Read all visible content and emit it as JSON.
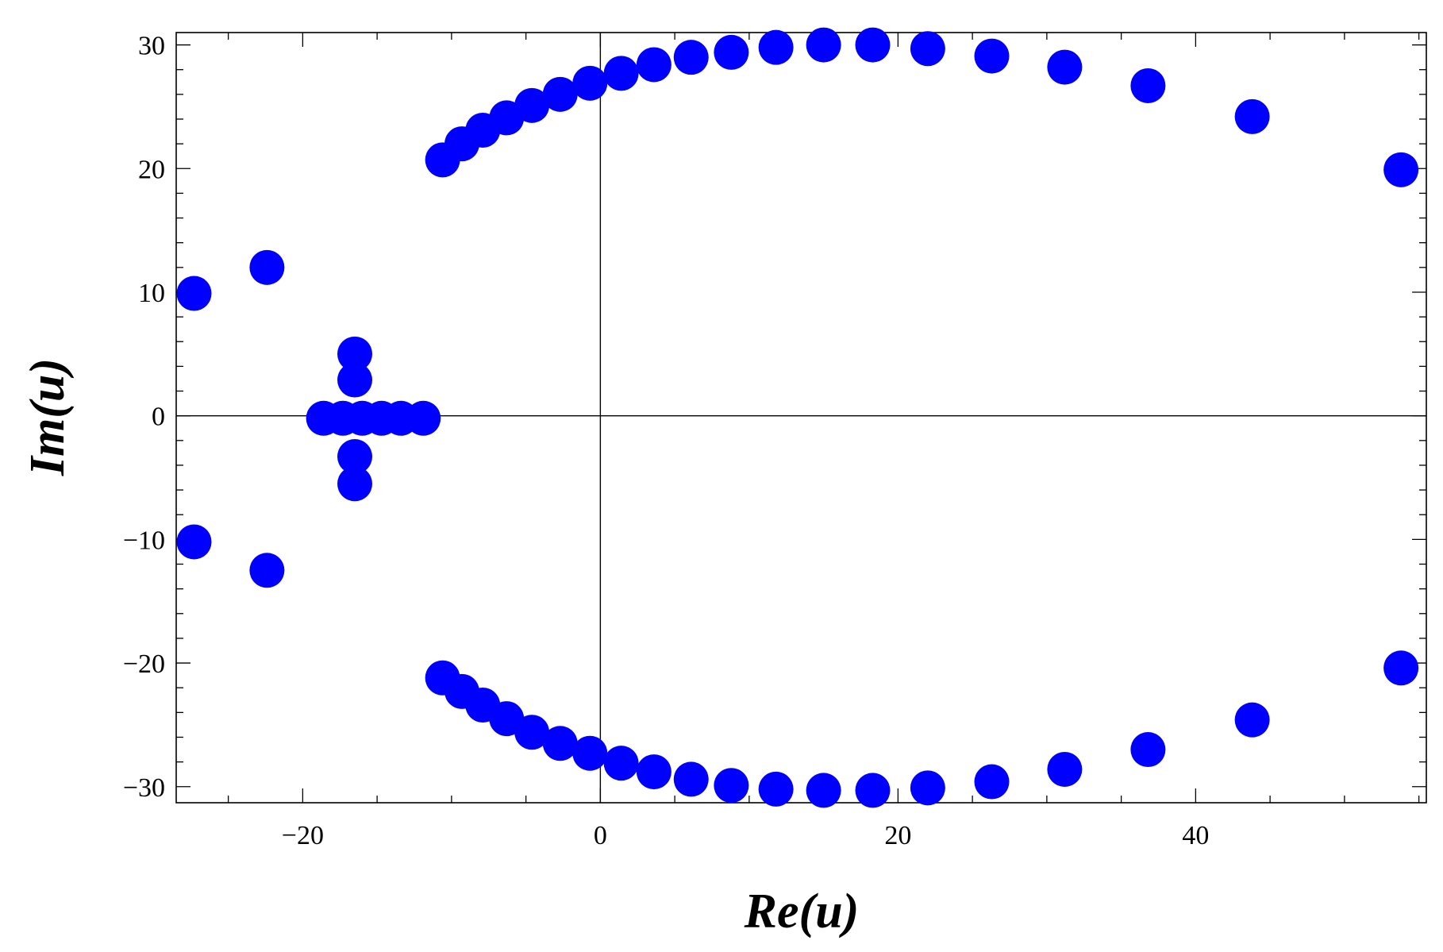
{
  "chart_data": {
    "type": "scatter",
    "title": "",
    "xlabel": "Re(u)",
    "ylabel": "Im(u)",
    "xlim": [
      -28.5,
      55.5
    ],
    "ylim": [
      -31.3,
      31.0
    ],
    "x_ticks": [
      -20,
      0,
      20,
      40
    ],
    "x_tick_labels": [
      "−20",
      "0",
      "20",
      "40"
    ],
    "y_ticks": [
      -30,
      -20,
      -10,
      0,
      10,
      20,
      30
    ],
    "y_tick_labels": [
      "−30",
      "−20",
      "−10",
      "0",
      "10",
      "20",
      "30"
    ],
    "x_minor_step": 5,
    "y_minor_step": 2,
    "grid": false,
    "axes_through_origin": true,
    "marker_color": "#0000ff",
    "series": [
      {
        "points": [
          [
            -27.3,
            9.9
          ],
          [
            -22.4,
            12.0
          ],
          [
            -27.3,
            -10.2
          ],
          [
            -22.4,
            -12.5
          ],
          [
            -16.5,
            5.0
          ],
          [
            -16.5,
            2.9
          ],
          [
            -16.5,
            -3.3
          ],
          [
            -16.5,
            -5.5
          ],
          [
            -18.6,
            -0.2
          ],
          [
            -17.3,
            -0.2
          ],
          [
            -16.0,
            -0.2
          ],
          [
            -14.7,
            -0.2
          ],
          [
            -13.4,
            -0.2
          ],
          [
            -11.9,
            -0.2
          ],
          [
            -10.6,
            20.7
          ],
          [
            -9.3,
            22.0
          ],
          [
            -7.9,
            23.1
          ],
          [
            -6.3,
            24.1
          ],
          [
            -4.6,
            25.1
          ],
          [
            -2.7,
            26.0
          ],
          [
            -0.7,
            26.9
          ],
          [
            1.4,
            27.7
          ],
          [
            3.6,
            28.4
          ],
          [
            6.1,
            29.0
          ],
          [
            8.8,
            29.4
          ],
          [
            11.8,
            29.8
          ],
          [
            15.0,
            30.0
          ],
          [
            18.3,
            30.0
          ],
          [
            22.0,
            29.7
          ],
          [
            26.3,
            29.1
          ],
          [
            31.2,
            28.2
          ],
          [
            36.8,
            26.7
          ],
          [
            43.8,
            24.2
          ],
          [
            53.8,
            19.9
          ],
          [
            -10.6,
            -21.2
          ],
          [
            -9.3,
            -22.3
          ],
          [
            -7.9,
            -23.4
          ],
          [
            -6.3,
            -24.5
          ],
          [
            -4.6,
            -25.6
          ],
          [
            -2.7,
            -26.5
          ],
          [
            -0.7,
            -27.3
          ],
          [
            1.4,
            -28.1
          ],
          [
            3.6,
            -28.8
          ],
          [
            6.1,
            -29.4
          ],
          [
            8.8,
            -29.9
          ],
          [
            11.8,
            -30.2
          ],
          [
            15.0,
            -30.3
          ],
          [
            18.3,
            -30.3
          ],
          [
            22.0,
            -30.1
          ],
          [
            26.3,
            -29.6
          ],
          [
            31.2,
            -28.6
          ],
          [
            36.8,
            -27.0
          ],
          [
            43.8,
            -24.6
          ],
          [
            53.8,
            -20.4
          ]
        ]
      }
    ]
  }
}
